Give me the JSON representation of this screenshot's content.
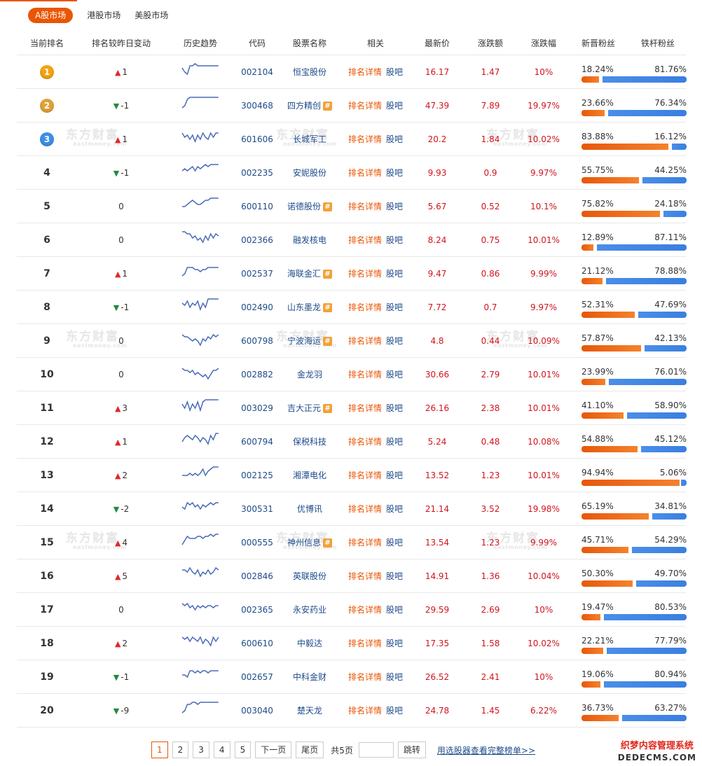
{
  "tabs": [
    {
      "label": "A股市场",
      "active": true
    },
    {
      "label": "港股市场",
      "active": false
    },
    {
      "label": "美股市场",
      "active": false
    }
  ],
  "watermark": {
    "text": "东方财富",
    "sub": "eastmoney.com"
  },
  "columns": [
    "当前排名",
    "排名较昨日变动",
    "历史趋势",
    "代码",
    "股票名称",
    "相关",
    "最新价",
    "涨跌额",
    "涨跌幅",
    "新晋粉丝",
    "铁杆粉丝"
  ],
  "links": {
    "detail": "排名详情",
    "bar": "股吧",
    "guba_icon": "#"
  },
  "colors": {
    "accent": "#ea5504",
    "up": "#e02828",
    "down": "#1f8c3b",
    "new_fans": "#ef6a1c",
    "loyal_fans": "#4a8ee8",
    "link": "#1d4a8a"
  },
  "rows": [
    {
      "rank": "1",
      "dir": "up",
      "change": "1",
      "code": "002104",
      "name": "恒宝股份",
      "guba": false,
      "price": "16.17",
      "amount": "1.47",
      "pct": "10%",
      "new_fans": "18.24%",
      "loyal_fans": "81.76%",
      "trend": [
        5,
        3,
        2,
        6,
        6,
        7,
        6,
        6,
        6,
        6,
        6,
        6,
        6,
        6,
        6
      ]
    },
    {
      "rank": "2",
      "dir": "down",
      "change": "-1",
      "code": "300468",
      "name": "四方精创",
      "guba": true,
      "price": "47.39",
      "amount": "7.89",
      "pct": "19.97%",
      "new_fans": "23.66%",
      "loyal_fans": "76.34%",
      "trend": [
        2,
        3,
        6,
        7,
        7,
        7,
        7,
        7,
        7,
        7,
        7,
        7,
        7,
        7,
        7
      ]
    },
    {
      "rank": "3",
      "dir": "up",
      "change": "1",
      "code": "601606",
      "name": "长城军工",
      "guba": false,
      "price": "20.2",
      "amount": "1.84",
      "pct": "10.02%",
      "new_fans": "83.88%",
      "loyal_fans": "16.12%",
      "trend": [
        6,
        4,
        5,
        3,
        5,
        2,
        5,
        3,
        6,
        4,
        3,
        6,
        4,
        6,
        6
      ]
    },
    {
      "rank": "4",
      "dir": "down",
      "change": "-1",
      "code": "002235",
      "name": "安妮股份",
      "guba": false,
      "price": "9.93",
      "amount": "0.9",
      "pct": "9.97%",
      "new_fans": "55.75%",
      "loyal_fans": "44.25%",
      "trend": [
        4,
        5,
        4,
        5,
        6,
        4,
        6,
        5,
        6,
        7,
        6,
        7,
        7,
        7,
        7
      ]
    },
    {
      "rank": "5",
      "dir": "none",
      "change": "0",
      "code": "600110",
      "name": "诺德股份",
      "guba": true,
      "price": "5.67",
      "amount": "0.52",
      "pct": "10.1%",
      "new_fans": "75.82%",
      "loyal_fans": "24.18%",
      "trend": [
        3,
        3,
        4,
        5,
        6,
        5,
        4,
        4,
        5,
        6,
        6,
        7,
        7,
        7,
        7
      ]
    },
    {
      "rank": "6",
      "dir": "none",
      "change": "0",
      "code": "002366",
      "name": "融发核电",
      "guba": false,
      "price": "8.24",
      "amount": "0.75",
      "pct": "10.01%",
      "new_fans": "12.89%",
      "loyal_fans": "87.11%",
      "trend": [
        7,
        7,
        6,
        6,
        4,
        5,
        3,
        4,
        2,
        5,
        3,
        6,
        4,
        6,
        5
      ]
    },
    {
      "rank": "7",
      "dir": "up",
      "change": "1",
      "code": "002537",
      "name": "海联金汇",
      "guba": true,
      "price": "9.47",
      "amount": "0.86",
      "pct": "9.99%",
      "new_fans": "21.12%",
      "loyal_fans": "78.88%",
      "trend": [
        2,
        3,
        6,
        6,
        6,
        5,
        5,
        4,
        5,
        5,
        6,
        6,
        6,
        6,
        6
      ]
    },
    {
      "rank": "8",
      "dir": "down",
      "change": "-1",
      "code": "002490",
      "name": "山东墨龙",
      "guba": true,
      "price": "7.72",
      "amount": "0.7",
      "pct": "9.97%",
      "new_fans": "52.31%",
      "loyal_fans": "47.69%",
      "trend": [
        5,
        4,
        6,
        3,
        5,
        4,
        6,
        2,
        5,
        3,
        7,
        7,
        7,
        7,
        7
      ]
    },
    {
      "rank": "9",
      "dir": "none",
      "change": "0",
      "code": "600798",
      "name": "宁波海运",
      "guba": true,
      "price": "4.8",
      "amount": "0.44",
      "pct": "10.09%",
      "new_fans": "57.87%",
      "loyal_fans": "42.13%",
      "trend": [
        6,
        5,
        5,
        4,
        3,
        4,
        3,
        1,
        4,
        3,
        5,
        4,
        6,
        5,
        6
      ]
    },
    {
      "rank": "10",
      "dir": "none",
      "change": "0",
      "code": "002882",
      "name": "金龙羽",
      "guba": false,
      "price": "30.66",
      "amount": "2.79",
      "pct": "10.01%",
      "new_fans": "23.99%",
      "loyal_fans": "76.01%",
      "trend": [
        6,
        5,
        5,
        4,
        5,
        3,
        4,
        3,
        2,
        3,
        1,
        3,
        5,
        5,
        6
      ]
    },
    {
      "rank": "11",
      "dir": "up",
      "change": "3",
      "code": "003029",
      "name": "吉大正元",
      "guba": true,
      "price": "26.16",
      "amount": "2.38",
      "pct": "10.01%",
      "new_fans": "41.10%",
      "loyal_fans": "58.90%",
      "trend": [
        5,
        3,
        6,
        2,
        5,
        3,
        6,
        2,
        6,
        7,
        7,
        7,
        7,
        7,
        7
      ]
    },
    {
      "rank": "12",
      "dir": "up",
      "change": "1",
      "code": "600794",
      "name": "保税科技",
      "guba": false,
      "price": "5.24",
      "amount": "0.48",
      "pct": "10.08%",
      "new_fans": "54.88%",
      "loyal_fans": "45.12%",
      "trend": [
        3,
        5,
        6,
        5,
        4,
        6,
        5,
        3,
        5,
        4,
        2,
        6,
        4,
        7,
        7
      ]
    },
    {
      "rank": "13",
      "dir": "up",
      "change": "2",
      "code": "002125",
      "name": "湘潭电化",
      "guba": false,
      "price": "13.52",
      "amount": "1.23",
      "pct": "10.01%",
      "new_fans": "94.94%",
      "loyal_fans": "5.06%",
      "trend": [
        3,
        3,
        3,
        4,
        3,
        4,
        3,
        4,
        6,
        3,
        5,
        6,
        7,
        7,
        7
      ]
    },
    {
      "rank": "14",
      "dir": "down",
      "change": "-2",
      "code": "300531",
      "name": "优博讯",
      "guba": false,
      "price": "21.14",
      "amount": "3.52",
      "pct": "19.98%",
      "new_fans": "65.19%",
      "loyal_fans": "34.81%",
      "trend": [
        4,
        3,
        6,
        5,
        6,
        4,
        5,
        3,
        5,
        4,
        5,
        6,
        5,
        6,
        6
      ]
    },
    {
      "rank": "15",
      "dir": "up",
      "change": "4",
      "code": "000555",
      "name": "神州信息",
      "guba": true,
      "price": "13.54",
      "amount": "1.23",
      "pct": "9.99%",
      "new_fans": "45.71%",
      "loyal_fans": "54.29%",
      "trend": [
        2,
        4,
        6,
        5,
        5,
        5,
        6,
        6,
        5,
        6,
        6,
        7,
        6,
        7,
        7
      ]
    },
    {
      "rank": "16",
      "dir": "up",
      "change": "5",
      "code": "002846",
      "name": "英联股份",
      "guba": false,
      "price": "14.91",
      "amount": "1.36",
      "pct": "10.04%",
      "new_fans": "50.30%",
      "loyal_fans": "49.70%",
      "trend": [
        6,
        6,
        5,
        7,
        5,
        4,
        6,
        3,
        5,
        4,
        6,
        4,
        5,
        7,
        6
      ]
    },
    {
      "rank": "17",
      "dir": "none",
      "change": "0",
      "code": "002365",
      "name": "永安药业",
      "guba": false,
      "price": "29.59",
      "amount": "2.69",
      "pct": "10%",
      "new_fans": "19.47%",
      "loyal_fans": "80.53%",
      "trend": [
        6,
        5,
        6,
        4,
        5,
        3,
        5,
        4,
        5,
        4,
        5,
        5,
        4,
        5,
        5
      ]
    },
    {
      "rank": "18",
      "dir": "up",
      "change": "2",
      "code": "600610",
      "name": "中毅达",
      "guba": false,
      "price": "17.35",
      "amount": "1.58",
      "pct": "10.02%",
      "new_fans": "22.21%",
      "loyal_fans": "77.79%",
      "trend": [
        6,
        5,
        6,
        4,
        6,
        5,
        4,
        6,
        3,
        5,
        4,
        2,
        6,
        4,
        6
      ]
    },
    {
      "rank": "19",
      "dir": "down",
      "change": "-1",
      "code": "002657",
      "name": "中科金财",
      "guba": false,
      "price": "26.52",
      "amount": "2.41",
      "pct": "10%",
      "new_fans": "19.06%",
      "loyal_fans": "80.94%",
      "trend": [
        4,
        4,
        3,
        6,
        6,
        5,
        6,
        5,
        6,
        6,
        5,
        6,
        6,
        6,
        6
      ]
    },
    {
      "rank": "20",
      "dir": "down",
      "change": "-9",
      "code": "003040",
      "name": "楚天龙",
      "guba": false,
      "price": "24.78",
      "amount": "1.45",
      "pct": "6.22%",
      "new_fans": "36.73%",
      "loyal_fans": "63.27%",
      "trend": [
        2,
        3,
        6,
        6,
        7,
        7,
        6,
        7,
        7,
        7,
        7,
        7,
        7,
        7,
        7
      ]
    }
  ],
  "pagination": {
    "pages": [
      "1",
      "2",
      "3",
      "4",
      "5"
    ],
    "current": "1",
    "next": "下一页",
    "last": "尾页",
    "total": "共5页",
    "jump": "跳转",
    "full_link": "用选股器查看完整榜单>>"
  },
  "corner": {
    "line1": "织梦内容管理系统",
    "line2": "DEDECMS.COM"
  }
}
